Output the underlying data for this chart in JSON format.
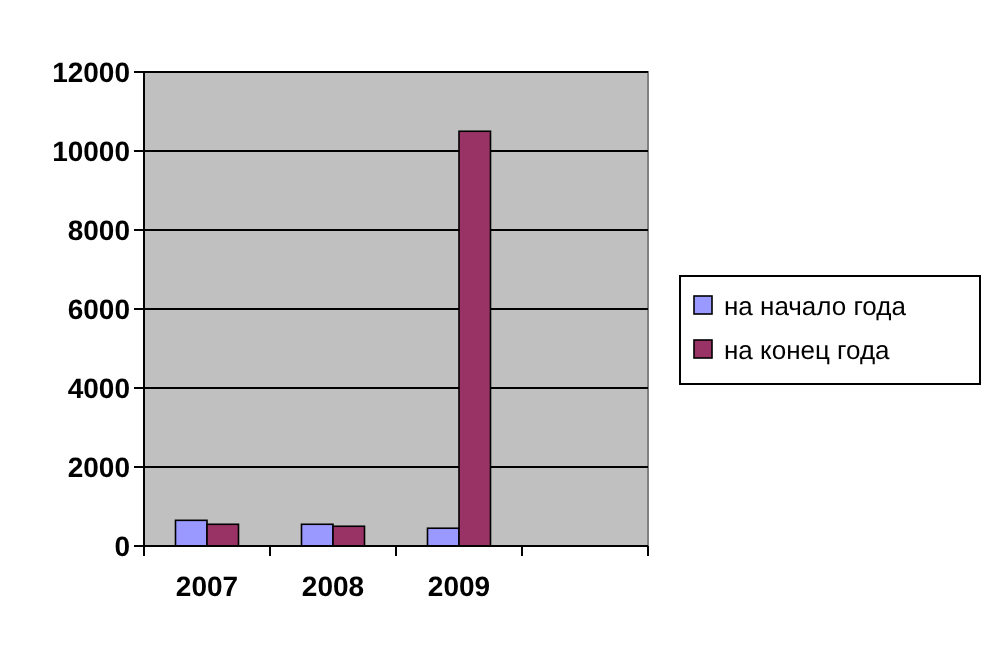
{
  "chart_data": {
    "type": "bar",
    "categories": [
      "2007",
      "2008",
      "2009",
      null
    ],
    "series": [
      {
        "name": "на начало года",
        "color": "#9999ff",
        "values": [
          650,
          550,
          450,
          null
        ]
      },
      {
        "name": "на конец года",
        "color": "#993366",
        "values": [
          550,
          500,
          10500,
          null
        ]
      }
    ],
    "ylim": [
      0,
      12000
    ],
    "yticks": [
      0,
      2000,
      4000,
      6000,
      8000,
      10000,
      12000
    ],
    "grid": "y",
    "legend": "right"
  }
}
